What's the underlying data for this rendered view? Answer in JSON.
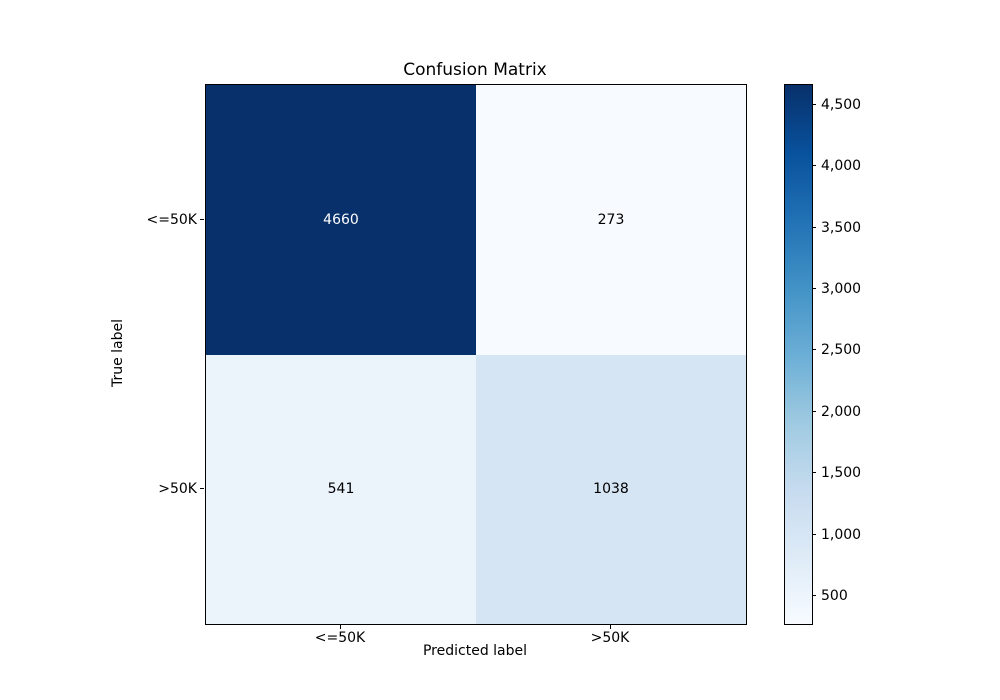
{
  "chart_data": {
    "type": "heatmap",
    "title": "Confusion Matrix",
    "xlabel": "Predicted label",
    "ylabel": "True label",
    "x_categories": [
      "<=50K",
      ">50K"
    ],
    "y_categories": [
      "<=50K",
      ">50K"
    ],
    "matrix": [
      [
        4660,
        273
      ],
      [
        541,
        1038
      ]
    ],
    "cell_labels": [
      [
        "4660",
        "273"
      ],
      [
        "541",
        "1038"
      ]
    ],
    "cell_colors": [
      [
        "#08306b",
        "#f7fbff"
      ],
      [
        "#ebf3fb",
        "#d5e5f4"
      ]
    ],
    "cell_text_colors": [
      [
        "#ffffff",
        "#000000"
      ],
      [
        "#000000",
        "#000000"
      ]
    ],
    "grid": false,
    "colorbar": {
      "position": "right",
      "vmin": 273,
      "vmax": 4660,
      "tick_values": [
        500,
        1000,
        1500,
        2000,
        2500,
        3000,
        3500,
        4000,
        4500
      ],
      "tick_labels": [
        "500",
        "1,000",
        "1,500",
        "2,000",
        "2,500",
        "3,000",
        "3,500",
        "4,000",
        "4,500"
      ],
      "gradient_stops": [
        "#f7fbff",
        "#deebf7",
        "#c6dbef",
        "#9ecae1",
        "#6baed6",
        "#4292c6",
        "#2171b5",
        "#08519c",
        "#08306b"
      ]
    }
  }
}
